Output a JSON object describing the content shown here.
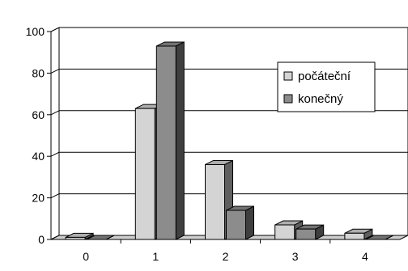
{
  "chart_data": {
    "type": "bar",
    "style": "3d-clustered-column",
    "categories": [
      "0",
      "1",
      "2",
      "3",
      "4"
    ],
    "series": [
      {
        "name": "počáteční",
        "values": [
          1,
          63,
          36,
          7,
          3
        ],
        "color": "#d4d4d4"
      },
      {
        "name": "konečný",
        "values": [
          0,
          93,
          14,
          5,
          0
        ],
        "color": "#8c8c8c"
      }
    ],
    "title": "",
    "xlabel": "",
    "ylabel": "",
    "ylim": [
      0,
      100
    ],
    "yticks": [
      "0",
      "20",
      "40",
      "60",
      "80",
      "100"
    ],
    "grid": true,
    "legend": "top-right"
  }
}
